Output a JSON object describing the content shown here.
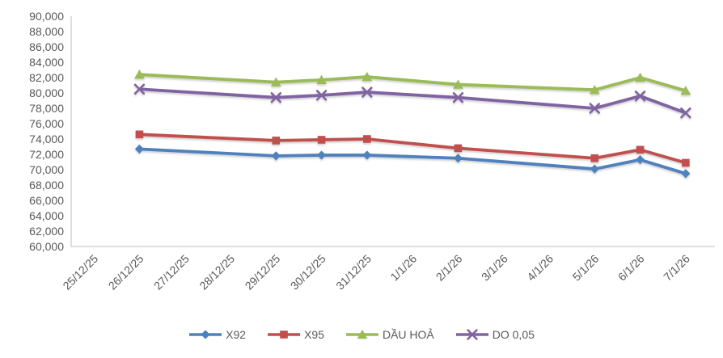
{
  "chart_data": {
    "type": "line",
    "title": "",
    "xlabel": "",
    "ylabel": "",
    "x_categories": [
      "25/12/25",
      "26/12/25",
      "27/12/25",
      "28/12/25",
      "29/12/25",
      "30/12/25",
      "31/12/25",
      "1/1/26",
      "2/1/26",
      "3/1/26",
      "4/1/26",
      "5/1/26",
      "6/1/26",
      "7/1/26"
    ],
    "ylim": [
      60000,
      90000
    ],
    "ytick_step": 2000,
    "ytick_labels": [
      "60,000",
      "62,000",
      "64,000",
      "66,000",
      "68,000",
      "70,000",
      "72,000",
      "74,000",
      "76,000",
      "78,000",
      "80,000",
      "82,000",
      "84,000",
      "86,000",
      "88,000",
      "90,000"
    ],
    "grid": false,
    "legend_position": "bottom",
    "axis_color": "#BFBFBF",
    "label_color": "#595959",
    "series": [
      {
        "name": "X92",
        "color": "#4F81BD",
        "marker": "diamond",
        "values": [
          null,
          72700,
          null,
          null,
          71800,
          71900,
          71900,
          null,
          71500,
          null,
          null,
          70100,
          71300,
          69500
        ]
      },
      {
        "name": "X95",
        "color": "#C0504D",
        "marker": "square",
        "values": [
          null,
          74600,
          null,
          null,
          73800,
          73900,
          74000,
          null,
          72800,
          null,
          null,
          71500,
          72600,
          70900
        ]
      },
      {
        "name": "DẦU HOẢ",
        "color": "#9BBB59",
        "marker": "triangle",
        "values": [
          null,
          82400,
          null,
          null,
          81400,
          81700,
          82100,
          null,
          81100,
          null,
          null,
          80400,
          82000,
          80300
        ]
      },
      {
        "name": "DO 0,05",
        "color": "#8064A2",
        "marker": "x",
        "values": [
          null,
          80500,
          null,
          null,
          79400,
          79700,
          80100,
          null,
          79400,
          null,
          null,
          78000,
          79600,
          77400
        ]
      }
    ]
  }
}
